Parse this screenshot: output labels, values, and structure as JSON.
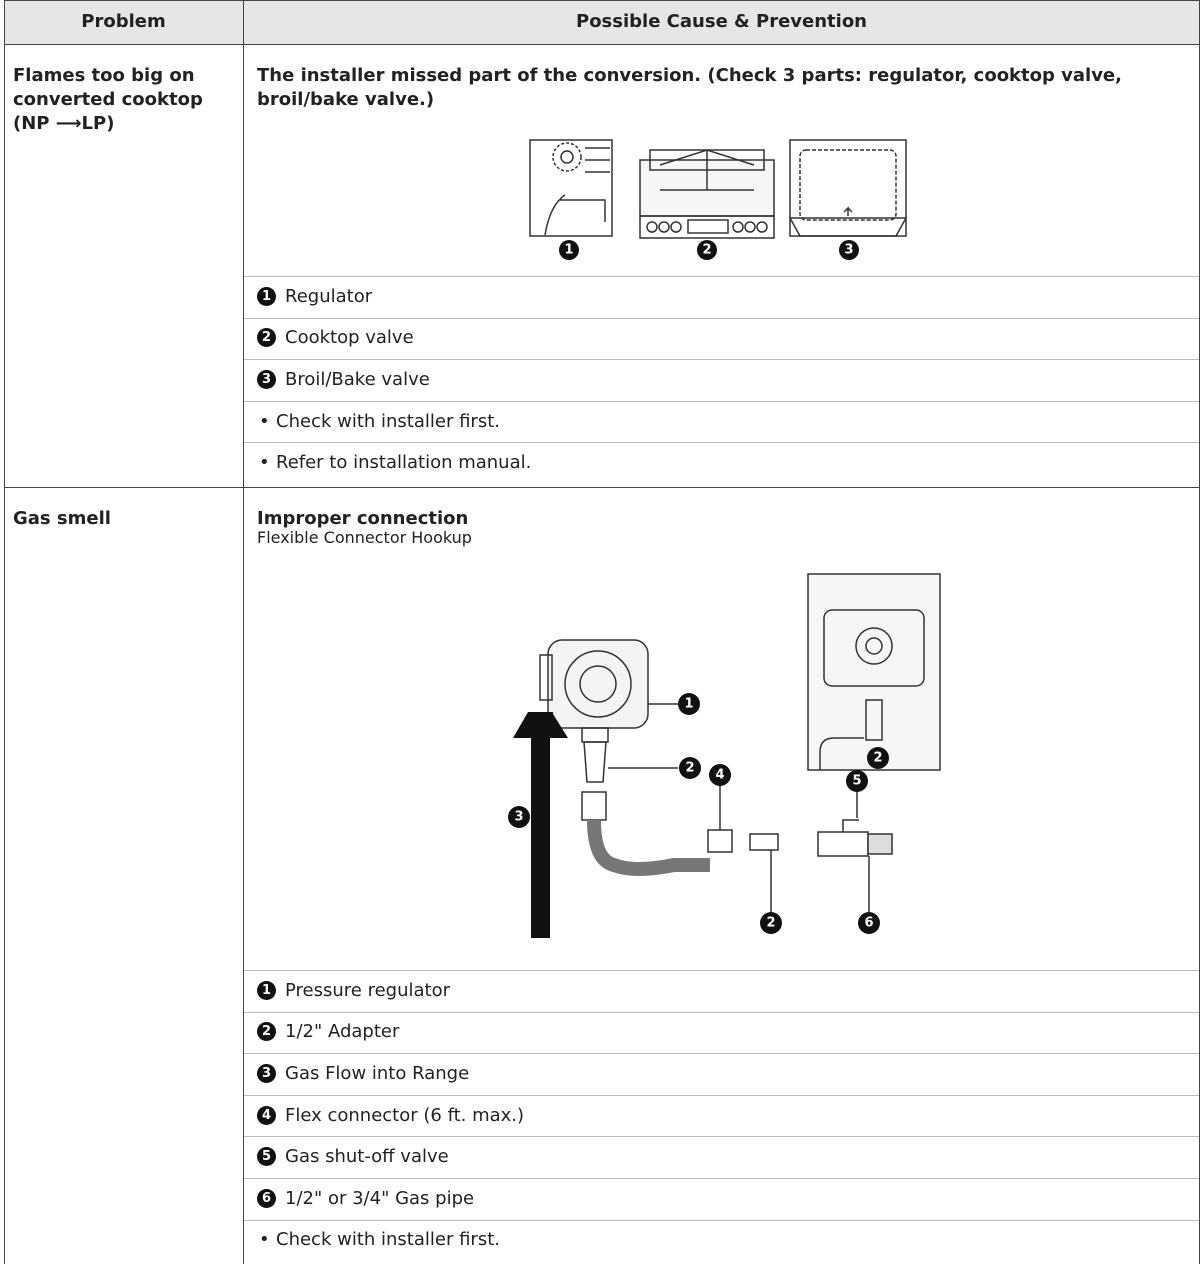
{
  "header": {
    "problem": "Problem",
    "cause": "Possible Cause & Prevention"
  },
  "rows": [
    {
      "problem": "Flames too big on converted cooktop (NP ⟶LP)",
      "cause_title": "The installer missed part of the conversion. (Check 3 parts: regulator, cooktop valve, broil/bake valve.)",
      "figure_callouts": [
        "1",
        "2",
        "3"
      ],
      "items": [
        {
          "marker": "1",
          "text": "Regulator"
        },
        {
          "marker": "2",
          "text": "Cooktop valve"
        },
        {
          "marker": "3",
          "text": "Broil/Bake valve"
        },
        {
          "bullet": "•",
          "text": "Check with installer first."
        },
        {
          "bullet": "•",
          "text": "Refer to installation manual."
        }
      ]
    },
    {
      "problem": "Gas smell",
      "cause_title": "Improper connection",
      "cause_subtitle": "Flexible Connector Hookup",
      "figure_callouts": [
        "1",
        "2",
        "3",
        "4",
        "5",
        "2",
        "2",
        "6"
      ],
      "items": [
        {
          "marker": "1",
          "text": "Pressure regulator"
        },
        {
          "marker": "2",
          "text": "1/2\" Adapter"
        },
        {
          "marker": "3",
          "text": "Gas Flow into Range"
        },
        {
          "marker": "4",
          "text": "Flex connector (6 ft. max.)"
        },
        {
          "marker": "5",
          "text": "Gas shut-off valve"
        },
        {
          "marker": "6",
          "text": "1/2\" or 3/4\" Gas pipe"
        },
        {
          "bullet": "•",
          "text": "Check with installer first."
        }
      ]
    }
  ]
}
